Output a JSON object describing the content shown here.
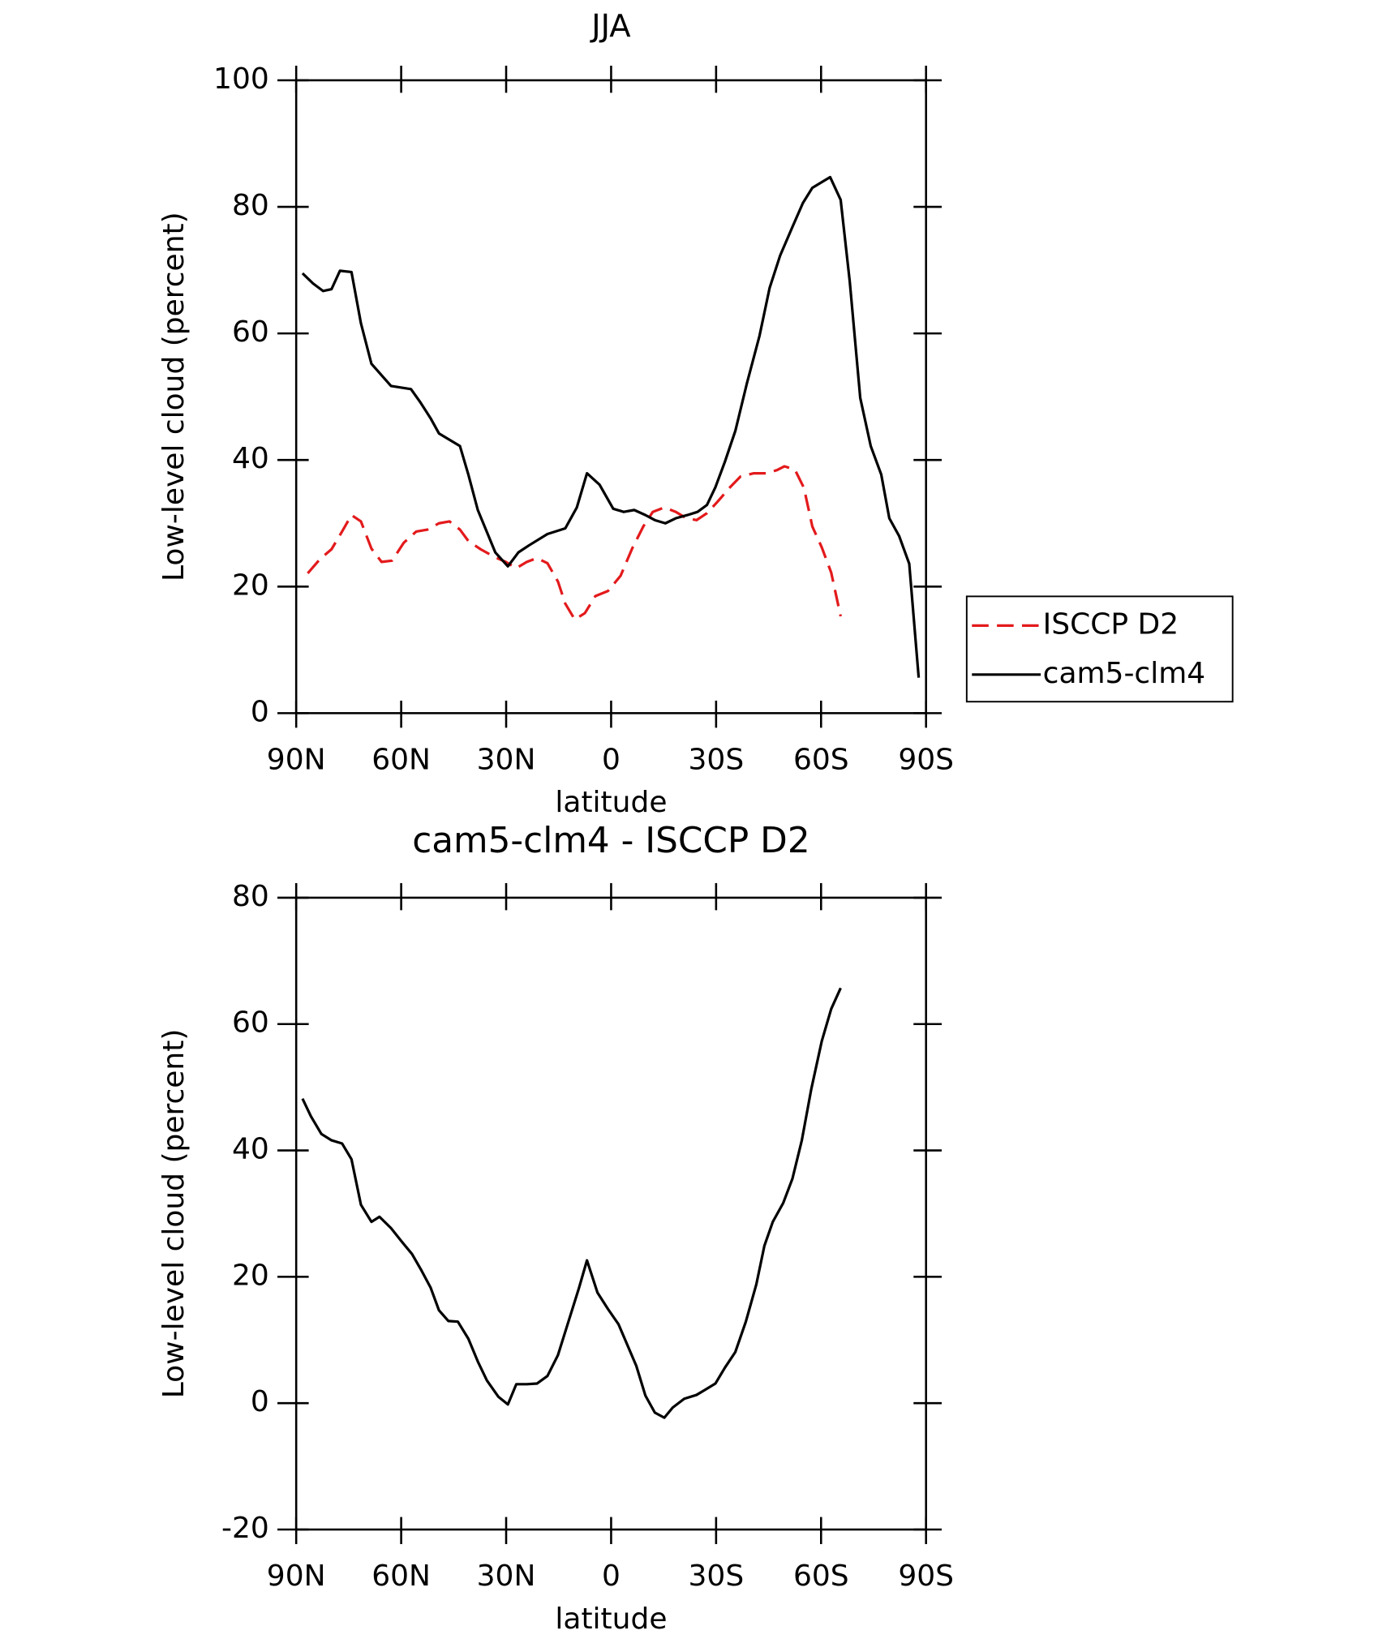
{
  "chart_data": [
    {
      "type": "line",
      "title": "JJA",
      "xlabel": "latitude",
      "ylabel": "Low-level cloud (percent)",
      "xlim": [
        90,
        -90
      ],
      "xticks": [
        {
          "value": 90,
          "label": "90N"
        },
        {
          "value": 60,
          "label": "60N"
        },
        {
          "value": 30,
          "label": "30N"
        },
        0,
        {
          "value": -30,
          "label": "30S"
        },
        {
          "value": -60,
          "label": "60S"
        },
        {
          "value": -90,
          "label": "90S"
        }
      ],
      "ylim": [
        0,
        100
      ],
      "yticks": [
        0,
        20,
        40,
        60,
        80,
        100
      ],
      "legend": "outside-right",
      "series": [
        {
          "name": "ISCCP D2",
          "color": "#e31a1c",
          "dashed": true,
          "x": [
            86.7,
            83.1,
            79.9,
            76.9,
            74.2,
            71.5,
            68.5,
            65.6,
            62.6,
            59.3,
            55.7,
            52.5,
            49.2,
            46.2,
            43.2,
            40.8,
            37.3,
            33.4,
            30.1,
            27.1,
            24.1,
            21.2,
            18.2,
            15.2,
            13.1,
            10.4,
            7.5,
            4.5,
            0.9,
            -2.7,
            -6.0,
            -9.2,
            -11.9,
            -15.2,
            -18.5,
            -21.5,
            -24.4,
            -27.4,
            -30.4,
            -34.0,
            -37.0,
            -40.8,
            -44.4,
            -47.4,
            -49.5,
            -52.5,
            -55.1,
            -57.5,
            -60.2,
            -62.9,
            -65.6
          ],
          "values": [
            22.1,
            24.4,
            25.9,
            28.7,
            31.3,
            30.3,
            26.0,
            23.9,
            24.1,
            26.9,
            28.7,
            29.0,
            30.0,
            30.3,
            29.0,
            27.2,
            25.9,
            24.7,
            23.9,
            22.9,
            23.9,
            24.5,
            23.7,
            20.8,
            17.3,
            14.8,
            15.8,
            18.5,
            19.3,
            21.7,
            26.0,
            29.5,
            31.8,
            32.5,
            31.8,
            30.8,
            30.5,
            31.6,
            33.4,
            35.7,
            37.4,
            37.9,
            37.9,
            38.4,
            39.0,
            38.5,
            35.6,
            29.5,
            26.2,
            22.2,
            15.3
          ]
        },
        {
          "name": "cam5-clm4",
          "color": "#000000",
          "dashed": false,
          "x": [
            88.2,
            85.2,
            82.3,
            79.9,
            77.5,
            74.2,
            71.5,
            68.5,
            62.9,
            57.2,
            54.5,
            51.6,
            49.2,
            43.2,
            40.8,
            38.1,
            33.1,
            29.5,
            26.5,
            23.5,
            18.2,
            13.1,
            9.8,
            6.9,
            3.3,
            -0.6,
            -3.6,
            -6.6,
            -9.8,
            -12.5,
            -15.5,
            -18.5,
            -21.8,
            -24.7,
            -27.4,
            -29.8,
            -32.5,
            -35.5,
            -38.8,
            -42.4,
            -45.3,
            -48.3,
            -51.8,
            -54.8,
            -57.5,
            -62.6,
            -65.6,
            -68.2,
            -71.2,
            -74.2,
            -77.2,
            -79.5,
            -82.3,
            -85.2,
            -87.9
          ],
          "values": [
            69.5,
            67.9,
            66.7,
            67.0,
            69.9,
            69.7,
            61.6,
            55.2,
            51.7,
            51.2,
            49.1,
            46.6,
            44.2,
            42.2,
            37.7,
            32.1,
            25.4,
            23.2,
            25.4,
            26.5,
            28.3,
            29.2,
            32.5,
            37.9,
            36.1,
            32.3,
            31.8,
            32.1,
            31.3,
            30.5,
            30.0,
            30.8,
            31.3,
            31.8,
            32.9,
            35.7,
            39.7,
            44.6,
            52.1,
            59.6,
            67.2,
            72.3,
            76.8,
            80.6,
            83.0,
            84.7,
            81.1,
            68.2,
            49.8,
            42.2,
            37.7,
            30.8,
            28.0,
            23.6,
            5.6
          ]
        }
      ]
    },
    {
      "type": "line",
      "title": "cam5-clm4 - ISCCP D2",
      "xlabel": "latitude",
      "ylabel": "Low-level cloud (percent)",
      "xlim": [
        90,
        -90
      ],
      "xticks": [
        {
          "value": 90,
          "label": "90N"
        },
        {
          "value": 60,
          "label": "60N"
        },
        {
          "value": 30,
          "label": "30N"
        },
        0,
        {
          "value": -30,
          "label": "30S"
        },
        {
          "value": -60,
          "label": "60S"
        },
        {
          "value": -90,
          "label": "90S"
        }
      ],
      "ylim": [
        -20,
        80
      ],
      "yticks": [
        -20,
        0,
        20,
        40,
        60,
        80
      ],
      "series": [
        {
          "color": "#000000",
          "dashed": false,
          "x": [
            88.2,
            85.8,
            82.8,
            79.9,
            76.9,
            74.2,
            71.5,
            68.5,
            66.2,
            62.9,
            59.6,
            56.9,
            54.2,
            51.6,
            49.2,
            46.5,
            43.8,
            40.8,
            38.1,
            35.5,
            32.2,
            29.5,
            27.1,
            24.1,
            21.2,
            18.2,
            15.2,
            12.2,
            9.2,
            6.9,
            3.9,
            0.9,
            -2.1,
            -4.5,
            -7.2,
            -9.8,
            -12.5,
            -15.2,
            -17.6,
            -20.9,
            -24.4,
            -26.8,
            -29.8,
            -32.5,
            -35.5,
            -38.5,
            -41.5,
            -43.8,
            -46.2,
            -49.2,
            -51.8,
            -54.5,
            -57.2,
            -60.2,
            -62.9,
            -65.6
          ],
          "values": [
            48.2,
            45.4,
            42.6,
            41.6,
            41.1,
            38.6,
            31.4,
            28.7,
            29.5,
            27.7,
            25.4,
            23.6,
            21.0,
            18.3,
            14.7,
            13.0,
            12.9,
            10.2,
            6.6,
            3.6,
            1.0,
            -0.2,
            3.0,
            3.0,
            3.1,
            4.3,
            7.6,
            12.9,
            18.2,
            22.6,
            17.5,
            14.9,
            12.5,
            9.4,
            5.9,
            1.2,
            -1.5,
            -2.3,
            -0.7,
            0.7,
            1.3,
            2.1,
            3.1,
            5.6,
            8.1,
            12.9,
            18.8,
            24.9,
            28.7,
            31.7,
            35.5,
            41.6,
            49.7,
            57.3,
            62.4,
            65.7
          ]
        }
      ]
    }
  ]
}
